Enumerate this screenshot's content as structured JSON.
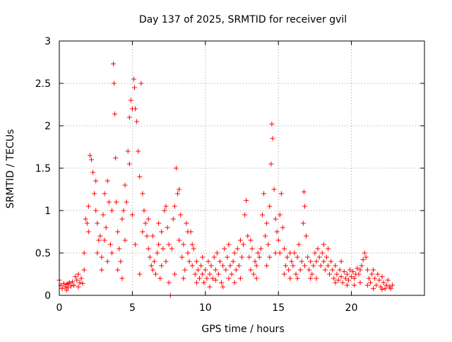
{
  "chart_data": {
    "type": "scatter",
    "title": "Day 137 of 2025, SRMTID for receiver gvil",
    "xlabel": "GPS time / hours",
    "ylabel": "SRMTID / TECUs",
    "xlim": [
      0,
      25
    ],
    "ylim": [
      0,
      3
    ],
    "x_ticks": [
      0,
      5,
      10,
      15,
      20
    ],
    "y_ticks": [
      0,
      0.5,
      1,
      1.5,
      2,
      2.5,
      3
    ],
    "x_tick_labels": [
      "0",
      "5",
      "10",
      "15",
      "20"
    ],
    "y_tick_labels": [
      "0",
      "0.5",
      "1",
      "1.5",
      "2",
      "2.5",
      "3"
    ],
    "grid": true,
    "marker": "+",
    "color": "#ff0000",
    "series": [
      {
        "name": "SRMTID",
        "points": [
          [
            0.0,
            0.18
          ],
          [
            0.1,
            0.12
          ],
          [
            0.2,
            0.08
          ],
          [
            0.3,
            0.14
          ],
          [
            0.4,
            0.1
          ],
          [
            0.5,
            0.13
          ],
          [
            0.6,
            0.09
          ],
          [
            0.7,
            0.15
          ],
          [
            0.8,
            0.11
          ],
          [
            0.9,
            0.16
          ],
          [
            1.0,
            0.12
          ],
          [
            1.1,
            0.22
          ],
          [
            1.2,
            0.18
          ],
          [
            1.3,
            0.25
          ],
          [
            1.4,
            0.15
          ],
          [
            1.5,
            0.2
          ],
          [
            1.6,
            0.14
          ],
          [
            1.7,
            0.3
          ],
          [
            1.8,
            0.9
          ],
          [
            1.9,
            0.85
          ],
          [
            2.0,
            1.05
          ],
          [
            2.1,
            1.65
          ],
          [
            2.2,
            1.6
          ],
          [
            2.3,
            1.45
          ],
          [
            2.4,
            1.2
          ],
          [
            2.5,
            1.0
          ],
          [
            2.6,
            0.85
          ],
          [
            2.7,
            0.65
          ],
          [
            2.8,
            0.7
          ],
          [
            2.9,
            0.45
          ],
          [
            3.0,
            0.95
          ],
          [
            3.1,
            1.2
          ],
          [
            3.2,
            0.8
          ],
          [
            3.3,
            1.35
          ],
          [
            3.4,
            1.1
          ],
          [
            3.5,
            0.6
          ],
          [
            3.6,
            0.5
          ],
          [
            3.7,
            2.73
          ],
          [
            3.75,
            2.5
          ],
          [
            3.8,
            2.14
          ],
          [
            3.85,
            1.62
          ],
          [
            3.9,
            1.1
          ],
          [
            4.0,
            0.75
          ],
          [
            4.1,
            0.55
          ],
          [
            4.2,
            0.4
          ],
          [
            4.3,
            0.9
          ],
          [
            4.4,
            1.0
          ],
          [
            4.5,
            0.65
          ],
          [
            4.6,
            1.1
          ],
          [
            4.7,
            1.7
          ],
          [
            4.8,
            2.1
          ],
          [
            4.9,
            2.3
          ],
          [
            5.0,
            2.2
          ],
          [
            5.1,
            2.55
          ],
          [
            5.15,
            2.45
          ],
          [
            5.2,
            2.2
          ],
          [
            5.3,
            2.05
          ],
          [
            5.4,
            1.7
          ],
          [
            5.5,
            1.4
          ],
          [
            5.6,
            2.5
          ],
          [
            5.7,
            1.2
          ],
          [
            5.8,
            1.0
          ],
          [
            5.9,
            0.85
          ],
          [
            6.0,
            0.7
          ],
          [
            6.1,
            0.55
          ],
          [
            6.2,
            0.45
          ],
          [
            6.3,
            0.35
          ],
          [
            6.4,
            0.3
          ],
          [
            6.5,
            0.4
          ],
          [
            6.6,
            0.25
          ],
          [
            6.7,
            0.5
          ],
          [
            6.8,
            0.6
          ],
          [
            6.9,
            0.2
          ],
          [
            7.0,
            0.35
          ],
          [
            7.1,
            0.55
          ],
          [
            7.2,
            1.0
          ],
          [
            7.3,
            1.05
          ],
          [
            7.4,
            0.8
          ],
          [
            7.5,
            0.6
          ],
          [
            7.6,
            0.0
          ],
          [
            7.7,
            0.55
          ],
          [
            7.8,
            0.9
          ],
          [
            7.9,
            1.05
          ],
          [
            8.0,
            1.5
          ],
          [
            8.1,
            1.2
          ],
          [
            8.2,
            0.65
          ],
          [
            8.3,
            0.95
          ],
          [
            8.4,
            0.45
          ],
          [
            8.5,
            0.6
          ],
          [
            8.6,
            0.3
          ],
          [
            8.7,
            0.85
          ],
          [
            8.8,
            0.5
          ],
          [
            8.9,
            0.4
          ],
          [
            9.0,
            0.75
          ],
          [
            9.1,
            0.35
          ],
          [
            9.2,
            0.55
          ],
          [
            9.3,
            0.25
          ],
          [
            9.4,
            0.4
          ],
          [
            9.5,
            0.3
          ],
          [
            9.6,
            0.2
          ],
          [
            9.7,
            0.35
          ],
          [
            9.8,
            0.25
          ],
          [
            9.9,
            0.15
          ],
          [
            10.0,
            0.3
          ],
          [
            10.1,
            0.2
          ],
          [
            10.2,
            0.4
          ],
          [
            10.3,
            0.25
          ],
          [
            10.4,
            0.35
          ],
          [
            10.5,
            0.2
          ],
          [
            10.6,
            0.45
          ],
          [
            10.7,
            0.3
          ],
          [
            10.8,
            0.5
          ],
          [
            10.9,
            0.25
          ],
          [
            11.0,
            0.4
          ],
          [
            11.1,
            0.15
          ],
          [
            11.2,
            0.35
          ],
          [
            11.3,
            0.55
          ],
          [
            11.4,
            0.3
          ],
          [
            11.5,
            0.45
          ],
          [
            11.6,
            0.6
          ],
          [
            11.7,
            0.35
          ],
          [
            11.8,
            0.25
          ],
          [
            11.9,
            0.4
          ],
          [
            12.0,
            0.5
          ],
          [
            12.1,
            0.3
          ],
          [
            12.2,
            0.55
          ],
          [
            12.3,
            0.35
          ],
          [
            12.4,
            0.2
          ],
          [
            12.5,
            0.45
          ],
          [
            12.6,
            0.6
          ],
          [
            12.7,
            0.95
          ],
          [
            12.8,
            1.12
          ],
          [
            12.9,
            0.7
          ],
          [
            13.0,
            0.45
          ],
          [
            13.1,
            0.3
          ],
          [
            13.2,
            0.55
          ],
          [
            13.3,
            0.25
          ],
          [
            13.4,
            0.4
          ],
          [
            13.5,
            0.35
          ],
          [
            13.6,
            0.5
          ],
          [
            13.7,
            0.45
          ],
          [
            13.8,
            0.55
          ],
          [
            13.9,
            0.95
          ],
          [
            14.0,
            1.2
          ],
          [
            14.1,
            0.7
          ],
          [
            14.2,
            0.85
          ],
          [
            14.3,
            0.6
          ],
          [
            14.4,
            1.05
          ],
          [
            14.5,
            1.55
          ],
          [
            14.55,
            2.02
          ],
          [
            14.6,
            1.85
          ],
          [
            14.7,
            1.25
          ],
          [
            14.8,
            0.9
          ],
          [
            14.9,
            0.75
          ],
          [
            15.0,
            0.65
          ],
          [
            15.1,
            0.5
          ],
          [
            15.2,
            1.2
          ],
          [
            15.3,
            0.8
          ],
          [
            15.4,
            0.55
          ],
          [
            15.5,
            0.35
          ],
          [
            15.6,
            0.45
          ],
          [
            15.7,
            0.3
          ],
          [
            15.8,
            0.5
          ],
          [
            15.9,
            0.4
          ],
          [
            16.0,
            0.35
          ],
          [
            16.1,
            0.5
          ],
          [
            16.2,
            0.25
          ],
          [
            16.3,
            0.45
          ],
          [
            16.4,
            0.6
          ],
          [
            16.5,
            0.3
          ],
          [
            16.6,
            0.4
          ],
          [
            16.7,
            0.85
          ],
          [
            16.75,
            1.22
          ],
          [
            16.8,
            1.05
          ],
          [
            16.9,
            0.7
          ],
          [
            17.0,
            0.45
          ],
          [
            17.1,
            0.3
          ],
          [
            17.2,
            0.4
          ],
          [
            17.3,
            0.25
          ],
          [
            17.4,
            0.35
          ],
          [
            17.5,
            0.5
          ],
          [
            17.6,
            0.4
          ],
          [
            17.7,
            0.55
          ],
          [
            17.8,
            0.45
          ],
          [
            17.9,
            0.35
          ],
          [
            18.0,
            0.5
          ],
          [
            18.1,
            0.4
          ],
          [
            18.2,
            0.3
          ],
          [
            18.3,
            0.45
          ],
          [
            18.4,
            0.35
          ],
          [
            18.5,
            0.25
          ],
          [
            18.6,
            0.4
          ],
          [
            18.7,
            0.3
          ],
          [
            18.8,
            0.2
          ],
          [
            18.9,
            0.35
          ],
          [
            19.0,
            0.25
          ],
          [
            19.1,
            0.18
          ],
          [
            19.2,
            0.3
          ],
          [
            19.3,
            0.22
          ],
          [
            19.4,
            0.15
          ],
          [
            19.5,
            0.28
          ],
          [
            19.6,
            0.2
          ],
          [
            19.7,
            0.25
          ],
          [
            19.8,
            0.18
          ],
          [
            19.9,
            0.3
          ],
          [
            20.0,
            0.22
          ],
          [
            20.1,
            0.28
          ],
          [
            20.2,
            0.2
          ],
          [
            20.3,
            0.25
          ],
          [
            20.4,
            0.32
          ],
          [
            20.5,
            0.25
          ],
          [
            20.6,
            0.3
          ],
          [
            20.7,
            0.35
          ],
          [
            20.8,
            0.42
          ],
          [
            20.9,
            0.5
          ],
          [
            21.0,
            0.45
          ],
          [
            21.1,
            0.3
          ],
          [
            21.2,
            0.2
          ],
          [
            21.3,
            0.15
          ],
          [
            21.4,
            0.25
          ],
          [
            21.5,
            0.3
          ],
          [
            21.6,
            0.2
          ],
          [
            21.7,
            0.12
          ],
          [
            21.8,
            0.25
          ],
          [
            21.9,
            0.18
          ],
          [
            22.0,
            0.1
          ],
          [
            22.1,
            0.22
          ],
          [
            22.2,
            0.15
          ],
          [
            22.3,
            0.08
          ],
          [
            22.4,
            0.12
          ],
          [
            22.5,
            0.18
          ],
          [
            22.6,
            0.1
          ],
          [
            22.7,
            0.08
          ],
          [
            22.8,
            0.12
          ],
          [
            0.5,
            0.06
          ],
          [
            0.6,
            0.14
          ],
          [
            1.3,
            0.1
          ],
          [
            1.7,
            0.5
          ],
          [
            2.0,
            0.75
          ],
          [
            2.5,
            1.35
          ],
          [
            2.6,
            0.5
          ],
          [
            2.9,
            0.3
          ],
          [
            3.1,
            0.65
          ],
          [
            3.3,
            0.4
          ],
          [
            3.6,
            1.0
          ],
          [
            4.0,
            0.3
          ],
          [
            4.3,
            0.2
          ],
          [
            4.5,
            1.3
          ],
          [
            4.8,
            1.55
          ],
          [
            5.0,
            0.95
          ],
          [
            5.2,
            0.6
          ],
          [
            5.5,
            0.25
          ],
          [
            5.7,
            0.75
          ],
          [
            6.1,
            0.9
          ],
          [
            6.4,
            0.7
          ],
          [
            6.8,
            0.85
          ],
          [
            7.0,
            0.75
          ],
          [
            7.3,
            0.4
          ],
          [
            7.5,
            0.15
          ],
          [
            7.9,
            0.25
          ],
          [
            8.2,
            1.25
          ],
          [
            8.5,
            0.2
          ],
          [
            8.8,
            0.75
          ],
          [
            9.1,
            0.6
          ],
          [
            9.4,
            0.15
          ],
          [
            9.8,
            0.45
          ],
          [
            10.3,
            0.1
          ],
          [
            10.7,
            0.18
          ],
          [
            11.2,
            0.1
          ],
          [
            11.6,
            0.2
          ],
          [
            12.0,
            0.15
          ],
          [
            12.4,
            0.65
          ],
          [
            13.1,
            0.65
          ],
          [
            13.5,
            0.2
          ],
          [
            14.2,
            0.35
          ],
          [
            14.4,
            0.45
          ],
          [
            14.8,
            0.5
          ],
          [
            15.1,
            0.95
          ],
          [
            15.4,
            0.25
          ],
          [
            15.8,
            0.2
          ],
          [
            16.3,
            0.2
          ],
          [
            16.8,
            0.35
          ],
          [
            17.2,
            0.2
          ],
          [
            17.6,
            0.2
          ],
          [
            18.1,
            0.6
          ],
          [
            18.4,
            0.55
          ],
          [
            18.9,
            0.15
          ],
          [
            19.3,
            0.4
          ],
          [
            19.7,
            0.12
          ],
          [
            20.2,
            0.12
          ],
          [
            20.6,
            0.15
          ],
          [
            21.1,
            0.12
          ],
          [
            21.5,
            0.08
          ],
          [
            22.1,
            0.07
          ]
        ]
      }
    ]
  }
}
